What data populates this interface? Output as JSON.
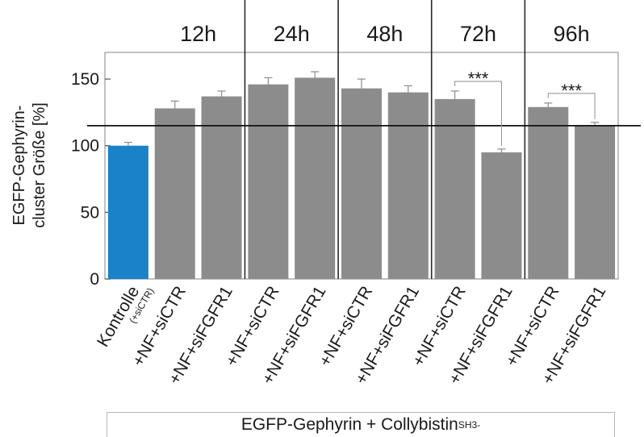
{
  "chart_data": {
    "type": "bar",
    "ylabel_line1": "EGFP-Gephyrin-",
    "ylabel_line2": "cluster Größe [%]",
    "ylim": [
      0,
      170
    ],
    "yticks": [
      0,
      50,
      100,
      150
    ],
    "reference_line": 115,
    "groups": [
      {
        "label": "12h",
        "bars": [
          1,
          2
        ]
      },
      {
        "label": "24h",
        "bars": [
          3,
          4
        ]
      },
      {
        "label": "48h",
        "bars": [
          5,
          6
        ]
      },
      {
        "label": "72h",
        "bars": [
          7,
          8
        ]
      },
      {
        "label": "96h",
        "bars": [
          9,
          10
        ]
      }
    ],
    "categories": [
      "Kontrolle",
      "+NF+siCTR",
      "+NF+siFGFR1",
      "+NF+siCTR",
      "+NF+siFGFR1",
      "+NF+siCTR",
      "+NF+siFGFR1",
      "+NF+siCTR",
      "+NF+siFGFR1",
      "+NF+siCTR",
      "+NF+siFGFR1"
    ],
    "control_sublabel": "(+siCTR)",
    "values": [
      100,
      128,
      137,
      146,
      151,
      143,
      140,
      135,
      95,
      129,
      115
    ],
    "errors": [
      2.5,
      5.5,
      4,
      5,
      4.5,
      7,
      5,
      6,
      2.5,
      3,
      2.5
    ],
    "colors": [
      "#1a82c8",
      "#8c8c8c",
      "#8c8c8c",
      "#8c8c8c",
      "#8c8c8c",
      "#8c8c8c",
      "#8c8c8c",
      "#8c8c8c",
      "#8c8c8c",
      "#8c8c8c",
      "#8c8c8c"
    ],
    "significance": [
      {
        "from": 7,
        "to": 8,
        "label": "***"
      },
      {
        "from": 9,
        "to": 10,
        "label": "***"
      }
    ],
    "footer_main": "EGFP-Gephyrin + Collybistin",
    "footer_sub": "SH3-"
  }
}
